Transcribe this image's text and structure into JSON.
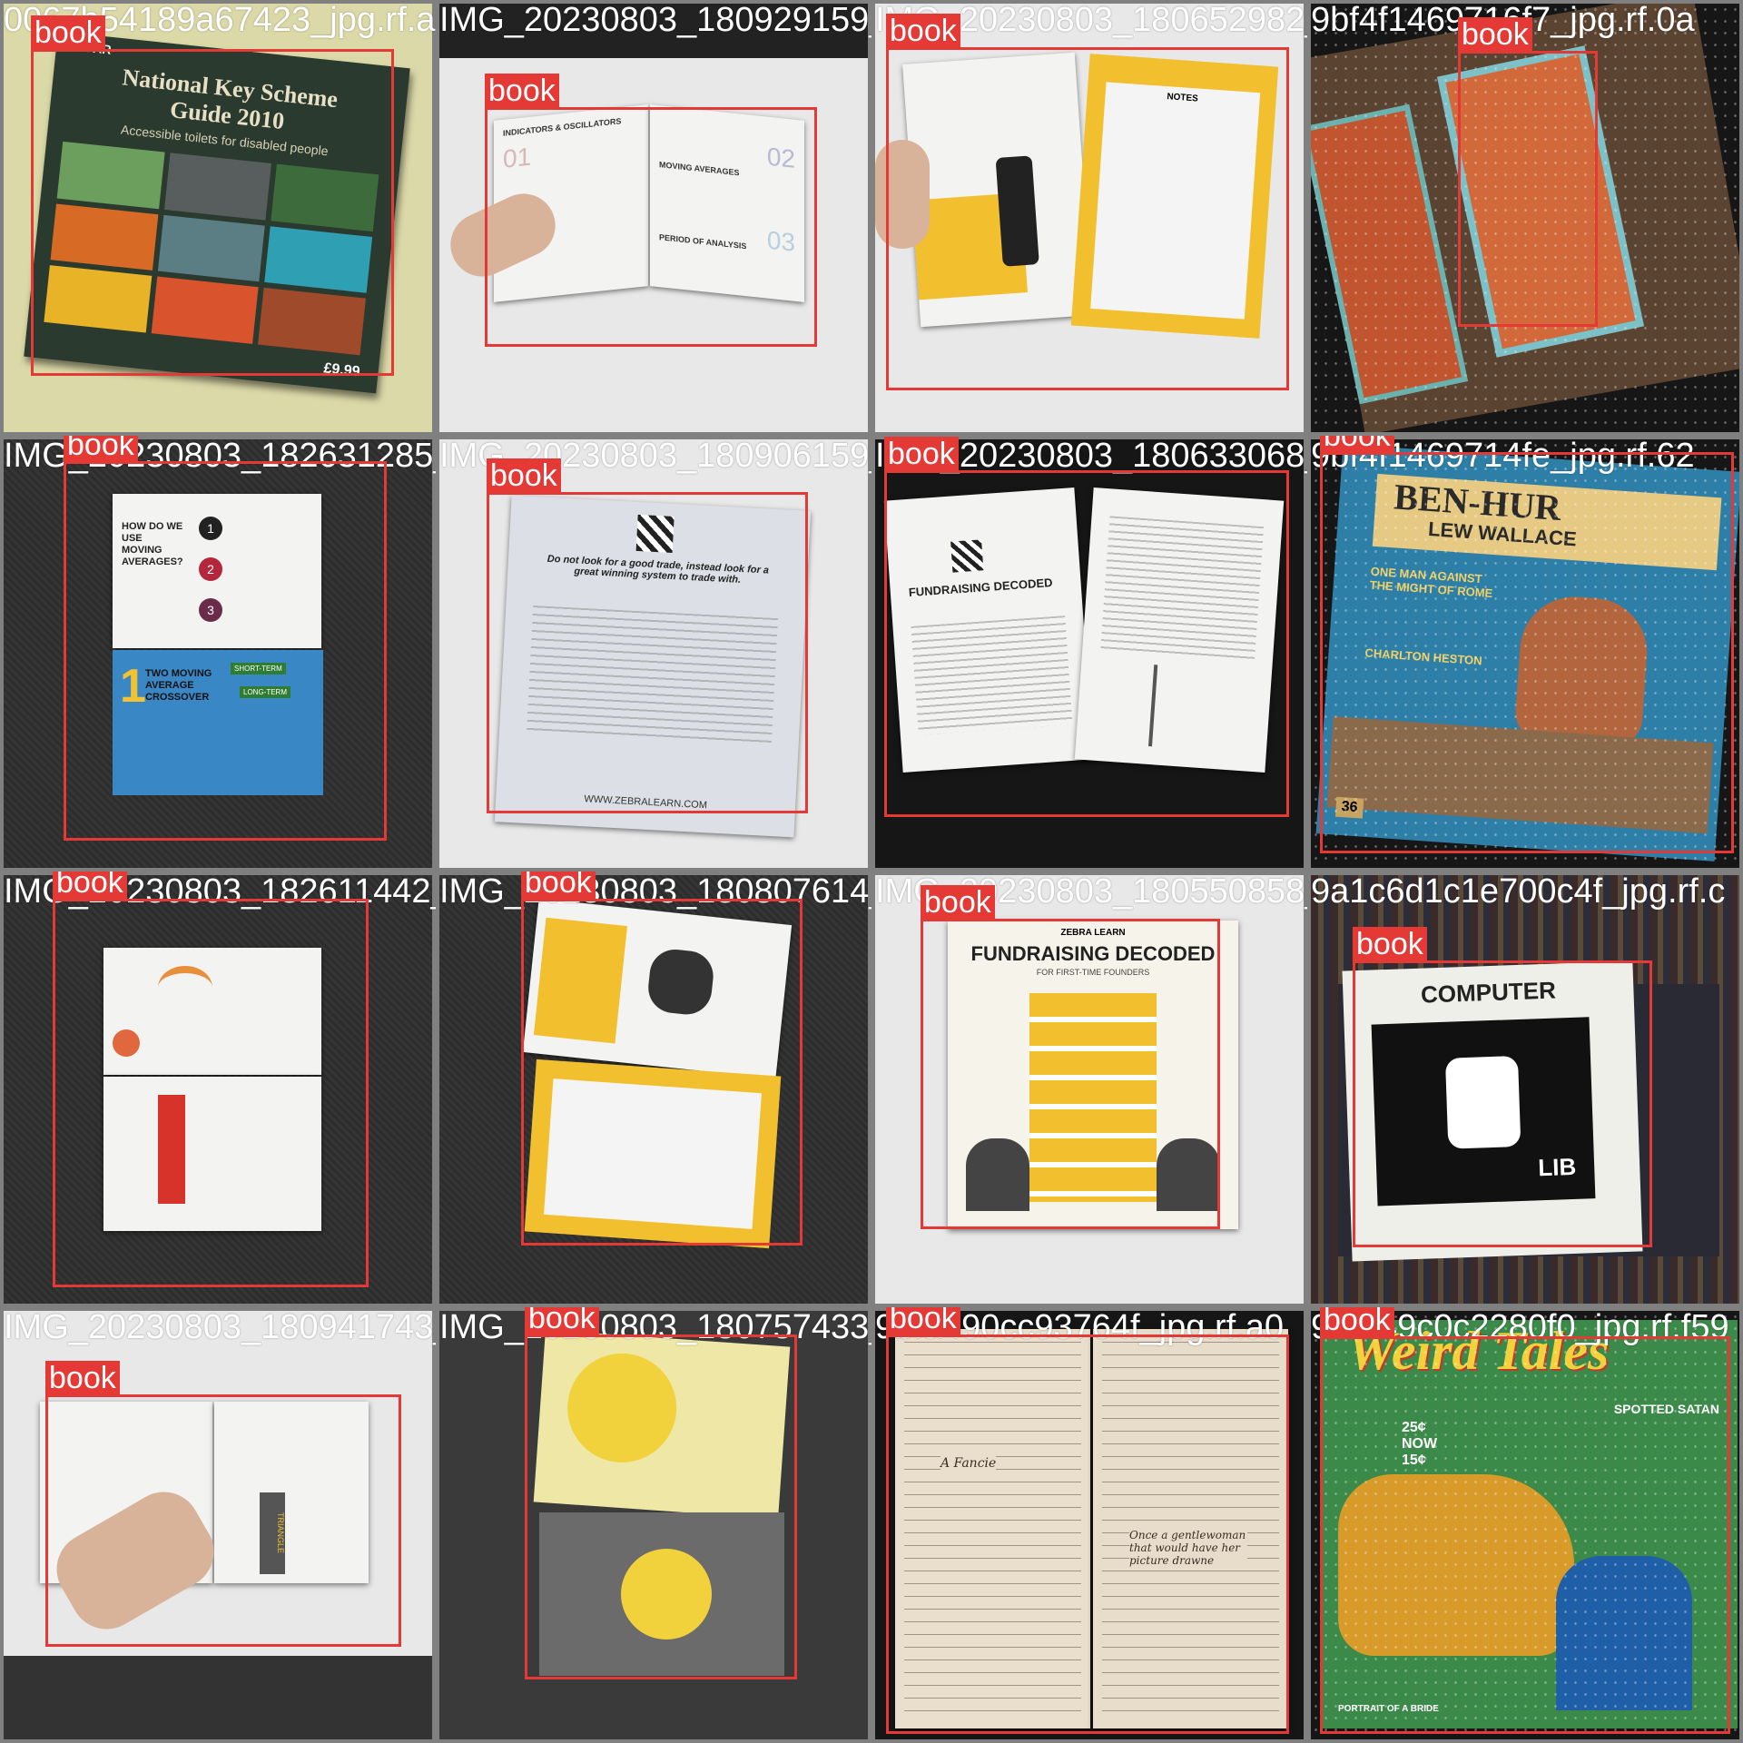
{
  "mosaic": {
    "box_color": "#e53935",
    "tiles": [
      {
        "filename": "0067b54189a67423_jpg.rf.a8",
        "label": "book"
      },
      {
        "filename": "IMG_20230803_180929159_jpg",
        "label": "book"
      },
      {
        "filename": "IMG_20230803_180652982_jpg",
        "label": "book"
      },
      {
        "filename": "9bf4f1469716f7_jpg.rf.0a",
        "label": "book"
      },
      {
        "filename": "IMG_20230803_182631285_jpg",
        "label": "book"
      },
      {
        "filename": "IMG_20230803_180906159_jpg",
        "label": "book"
      },
      {
        "filename": "IMG_20230803_180633068_jpg",
        "label": "book"
      },
      {
        "filename": "9bf4f1469714fe_jpg.rf.62",
        "label": "book"
      },
      {
        "filename": "IMG_20230803_182611442_jpg",
        "label": "book"
      },
      {
        "filename": "IMG_20230803_180807614_jpg",
        "label": "book"
      },
      {
        "filename": "IMG_20230803_180550858_jpg",
        "label": "book"
      },
      {
        "filename": "9a1c6d1c1e700c4f_jpg.rf.c",
        "label": "book"
      },
      {
        "filename": "IMG_20230803_180941743_jpg",
        "label": "book"
      },
      {
        "filename": "IMG_20230803_180757433_jpg",
        "label": "book"
      },
      {
        "filename": "9bfa490cc93764f_jpg.rf.a0",
        "label": "book"
      },
      {
        "filename": "9bfa49c0c2280f0_jpg.rf.f59",
        "label": "book"
      }
    ]
  },
  "covers": {
    "t0": {
      "brand": "RADAR",
      "title1": "National Key Scheme",
      "title2": "Guide 2010",
      "subtitle": "Accessible toilets for disabled people",
      "price": "£9.99"
    },
    "t1": {
      "heading": "INDICATORS & OSCILLATORS",
      "num1": "01",
      "num2": "02",
      "num3": "03",
      "sub1": "MOVING AVERAGES",
      "sub2": "PERIOD OF ANALYSIS"
    },
    "t2": {
      "right": "NOTES"
    },
    "t4": {
      "q": "HOW DO WE USE MOVING AVERAGES?",
      "n1": "1",
      "n2": "2",
      "n3": "3",
      "big": "1",
      "s": "TWO MOVING AVERAGE CROSSOVER",
      "sign1": "SHORT-TERM",
      "sign2": "LONG-TERM"
    },
    "t5": {
      "quote": "Do not look for a good trade, instead look for a great winning system to trade with.",
      "url": "WWW.ZEBRALEARN.COM"
    },
    "t6": {
      "title": "FUNDRAISING DECODED"
    },
    "t7": {
      "title": "BEN-HUR",
      "author": "LEW WALLACE",
      "tag": "ONE MAN AGAINST THE MIGHT OF ROME",
      "star": "CHARLTON HESTON",
      "num": "36"
    },
    "t10": {
      "brand": "ZEBRA LEARN",
      "title": "FUNDRAISING DECODED",
      "sub": "FOR FIRST-TIME FOUNDERS"
    },
    "t11": {
      "title": "COMPUTER",
      "lib": "LIB"
    },
    "t12": {
      "side": "TRIANGLE"
    },
    "t14": {
      "note1": "A Fancie",
      "note2": "Once a gentlewoman that would have her picture drawne"
    },
    "t15": {
      "title": "Weird Tales",
      "sub1": "SPOTTED SATAN",
      "sub2": "25¢ NOW 15¢",
      "foot": "PORTRAIT OF A BRIDE"
    }
  }
}
